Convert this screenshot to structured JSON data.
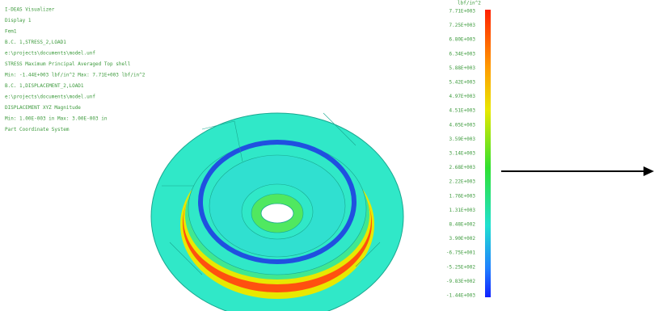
{
  "info_lines": [
    "I-DEAS Visualizer",
    "Display 1",
    "Fem1",
    "B.C. 1,STRESS_2,LOAD1",
    "e:\\projects\\documents\\model.unf",
    "STRESS  Maximum Principal  Averaged  Top shell",
    "Min: -1.44E+003 lbf/in^2  Max: 7.71E+003 lbf/in^2",
    "B.C. 1,DISPLACEMENT_2,LOAD1",
    "e:\\projects\\documents\\model.unf",
    "DISPLACEMENT  XYZ  Magnitude",
    "Min: 1.00E-003 in  Max: 3.00E-003 in",
    "Part Coordinate System"
  ],
  "colorbar": {
    "units": "lbf/in^2",
    "labels": [
      "7.71E+003",
      "7.25E+003",
      "6.80E+003",
      "6.34E+003",
      "5.88E+003",
      "5.42E+003",
      "4.97E+003",
      "4.51E+003",
      "4.05E+003",
      "3.59E+003",
      "3.14E+003",
      "2.68E+003",
      "2.22E+003",
      "1.76E+003",
      "1.31E+003",
      "8.48E+002",
      "3.90E+002",
      "-6.75E+001",
      "-5.25E+002",
      "-9.83E+002",
      "-1.44E+003"
    ]
  }
}
